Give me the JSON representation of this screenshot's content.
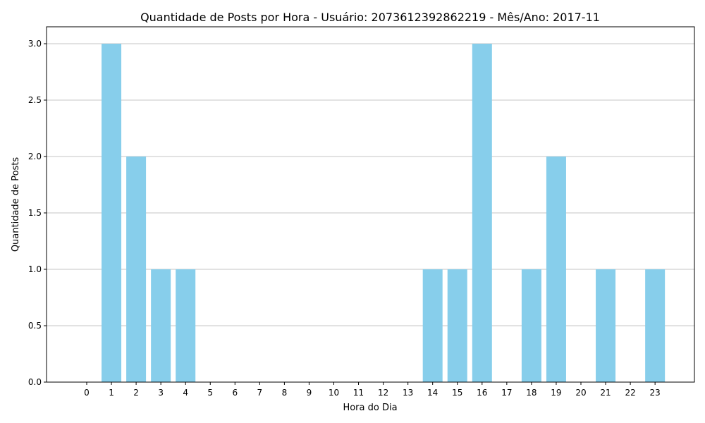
{
  "chart_data": {
    "type": "bar",
    "title": "Quantidade de Posts por Hora - Usuário: 2073612392862219 - Mês/Ano: 2017-11",
    "xlabel": "Hora do Dia",
    "ylabel": "Quantidade de Posts",
    "categories": [
      "0",
      "1",
      "2",
      "3",
      "4",
      "5",
      "6",
      "7",
      "8",
      "9",
      "10",
      "11",
      "12",
      "13",
      "14",
      "15",
      "16",
      "17",
      "18",
      "19",
      "20",
      "21",
      "22",
      "23"
    ],
    "values": [
      0,
      3,
      2,
      1,
      1,
      0,
      0,
      0,
      0,
      0,
      0,
      0,
      0,
      0,
      1,
      1,
      3,
      0,
      1,
      2,
      0,
      1,
      0,
      1
    ],
    "ylim": [
      0,
      3.15
    ],
    "yticks": [
      "0.0",
      "0.5",
      "1.0",
      "1.5",
      "2.0",
      "2.5",
      "3.0"
    ],
    "grid": "y",
    "legend": "none",
    "bar_color": "#87ceeb",
    "grid_color": "#b0b0b0"
  }
}
